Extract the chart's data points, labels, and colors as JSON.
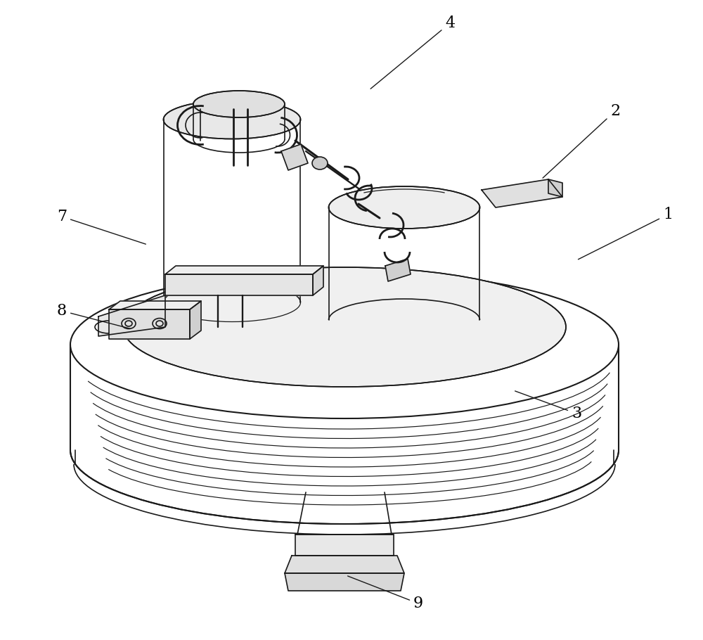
{
  "background_color": "#ffffff",
  "line_color": "#1a1a1a",
  "line_width": 1.2,
  "label_fontsize": 16,
  "fig_width": 10.0,
  "fig_height": 9.1
}
